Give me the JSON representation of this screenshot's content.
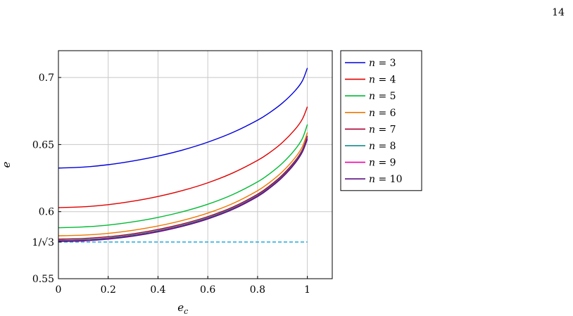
{
  "page": {
    "number": "14"
  },
  "chart_data": {
    "type": "line",
    "xlabel": "e_c",
    "ylabel": "e",
    "xlim": [
      0,
      1.1
    ],
    "ylim": [
      0.55,
      0.72
    ],
    "grid": true,
    "legend_position": "outside-right-top",
    "x_ticks": [
      {
        "value": 0,
        "label": "0"
      },
      {
        "value": 0.2,
        "label": "0.2"
      },
      {
        "value": 0.4,
        "label": "0.4"
      },
      {
        "value": 0.6,
        "label": "0.6"
      },
      {
        "value": 0.8,
        "label": "0.8"
      },
      {
        "value": 1,
        "label": "1"
      }
    ],
    "y_ticks": [
      {
        "value": 0.55,
        "label": "0.55"
      },
      {
        "value": 0.57735,
        "label": "1/√3"
      },
      {
        "value": 0.6,
        "label": "0.6"
      },
      {
        "value": 0.65,
        "label": "0.65"
      },
      {
        "value": 0.7,
        "label": "0.7"
      }
    ],
    "x": [
      0,
      0.1,
      0.2,
      0.3,
      0.4,
      0.5,
      0.6,
      0.7,
      0.8,
      0.85,
      0.9,
      0.95,
      0.98,
      1.0
    ],
    "series": [
      {
        "name": "n = 3",
        "color": "#0000dd",
        "values": [
          0.6325,
          0.6332,
          0.635,
          0.6378,
          0.6414,
          0.646,
          0.6518,
          0.659,
          0.6682,
          0.674,
          0.681,
          0.69,
          0.6975,
          0.7071
        ]
      },
      {
        "name": "n = 4",
        "color": "#e00000",
        "values": [
          0.603,
          0.6036,
          0.6052,
          0.6078,
          0.6113,
          0.6158,
          0.6215,
          0.6288,
          0.6382,
          0.6442,
          0.6516,
          0.6612,
          0.669,
          0.6782
        ]
      },
      {
        "name": "n = 5",
        "color": "#00bb33",
        "values": [
          0.588,
          0.5886,
          0.59,
          0.5924,
          0.5957,
          0.6,
          0.6055,
          0.6127,
          0.6222,
          0.6285,
          0.6362,
          0.6462,
          0.6545,
          0.665
        ]
      },
      {
        "name": "n = 6",
        "color": "#ee7700",
        "values": [
          0.582,
          0.5825,
          0.5838,
          0.5861,
          0.5893,
          0.5935,
          0.5989,
          0.606,
          0.6156,
          0.622,
          0.6298,
          0.64,
          0.6485,
          0.659
        ]
      },
      {
        "name": "n = 7",
        "color": "#aa0033",
        "values": [
          0.5795,
          0.58,
          0.5813,
          0.5835,
          0.5867,
          0.5909,
          0.5963,
          0.6034,
          0.613,
          0.6195,
          0.6274,
          0.6377,
          0.6462,
          0.6565
        ]
      },
      {
        "name": "n = 8",
        "color": "#008080",
        "values": [
          0.5786,
          0.5791,
          0.5804,
          0.5826,
          0.5858,
          0.59,
          0.5954,
          0.6025,
          0.6121,
          0.6186,
          0.6265,
          0.6368,
          0.6453,
          0.6555
        ]
      },
      {
        "name": "n = 9",
        "color": "#ee00aa",
        "values": [
          0.578,
          0.5785,
          0.5798,
          0.582,
          0.5852,
          0.5894,
          0.5948,
          0.6019,
          0.6115,
          0.618,
          0.6259,
          0.6362,
          0.6447,
          0.6548
        ]
      },
      {
        "name": "n = 10",
        "color": "#5a1080",
        "values": [
          0.5777,
          0.5782,
          0.5795,
          0.5817,
          0.5849,
          0.5891,
          0.5945,
          0.6016,
          0.6112,
          0.6177,
          0.6256,
          0.6359,
          0.6444,
          0.654
        ]
      }
    ],
    "reference_line": {
      "y": 0.57735,
      "color": "#22aadd",
      "style": "dashed"
    }
  }
}
